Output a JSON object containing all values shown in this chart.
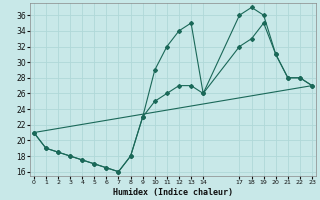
{
  "xlabel": "Humidex (Indice chaleur)",
  "bg_color": "#c8e8e8",
  "grid_color": "#b0d8d8",
  "line_color": "#1a6858",
  "xlim": [
    0,
    23
  ],
  "ylim": [
    15.5,
    37.5
  ],
  "yticks": [
    16,
    18,
    20,
    22,
    24,
    26,
    28,
    30,
    32,
    34,
    36
  ],
  "xtick_positions": [
    0,
    1,
    2,
    3,
    4,
    5,
    6,
    7,
    8,
    9,
    10,
    11,
    12,
    13,
    14,
    17,
    18,
    19,
    20,
    21,
    22,
    23
  ],
  "xtick_labels": [
    "0",
    "1",
    "2",
    "3",
    "4",
    "5",
    "6",
    "7",
    "8",
    "9",
    "10",
    "11",
    "12",
    "13",
    "14",
    "17",
    "18",
    "19",
    "20",
    "21",
    "22",
    "23"
  ],
  "line1_x": [
    0,
    1,
    2,
    3,
    4,
    5,
    6,
    7,
    8,
    9,
    10,
    11,
    12,
    13,
    14,
    17,
    18,
    19,
    20,
    21,
    22,
    23
  ],
  "line1_y": [
    21,
    19,
    18.5,
    18,
    17.5,
    17,
    16.5,
    16,
    18,
    23,
    29,
    32,
    34,
    35,
    26,
    36,
    37,
    36,
    31,
    28,
    28,
    27
  ],
  "line2_x": [
    0,
    1,
    2,
    3,
    4,
    5,
    6,
    7,
    8,
    9,
    10,
    11,
    12,
    13,
    14,
    17,
    18,
    19,
    20,
    21,
    22,
    23
  ],
  "line2_y": [
    21,
    19,
    18.5,
    18,
    17.5,
    17,
    16.5,
    16,
    18,
    23,
    25,
    26,
    27,
    27,
    26,
    32,
    33,
    35,
    31,
    28,
    28,
    27
  ],
  "line3_x": [
    0,
    23
  ],
  "line3_y": [
    21,
    27
  ]
}
